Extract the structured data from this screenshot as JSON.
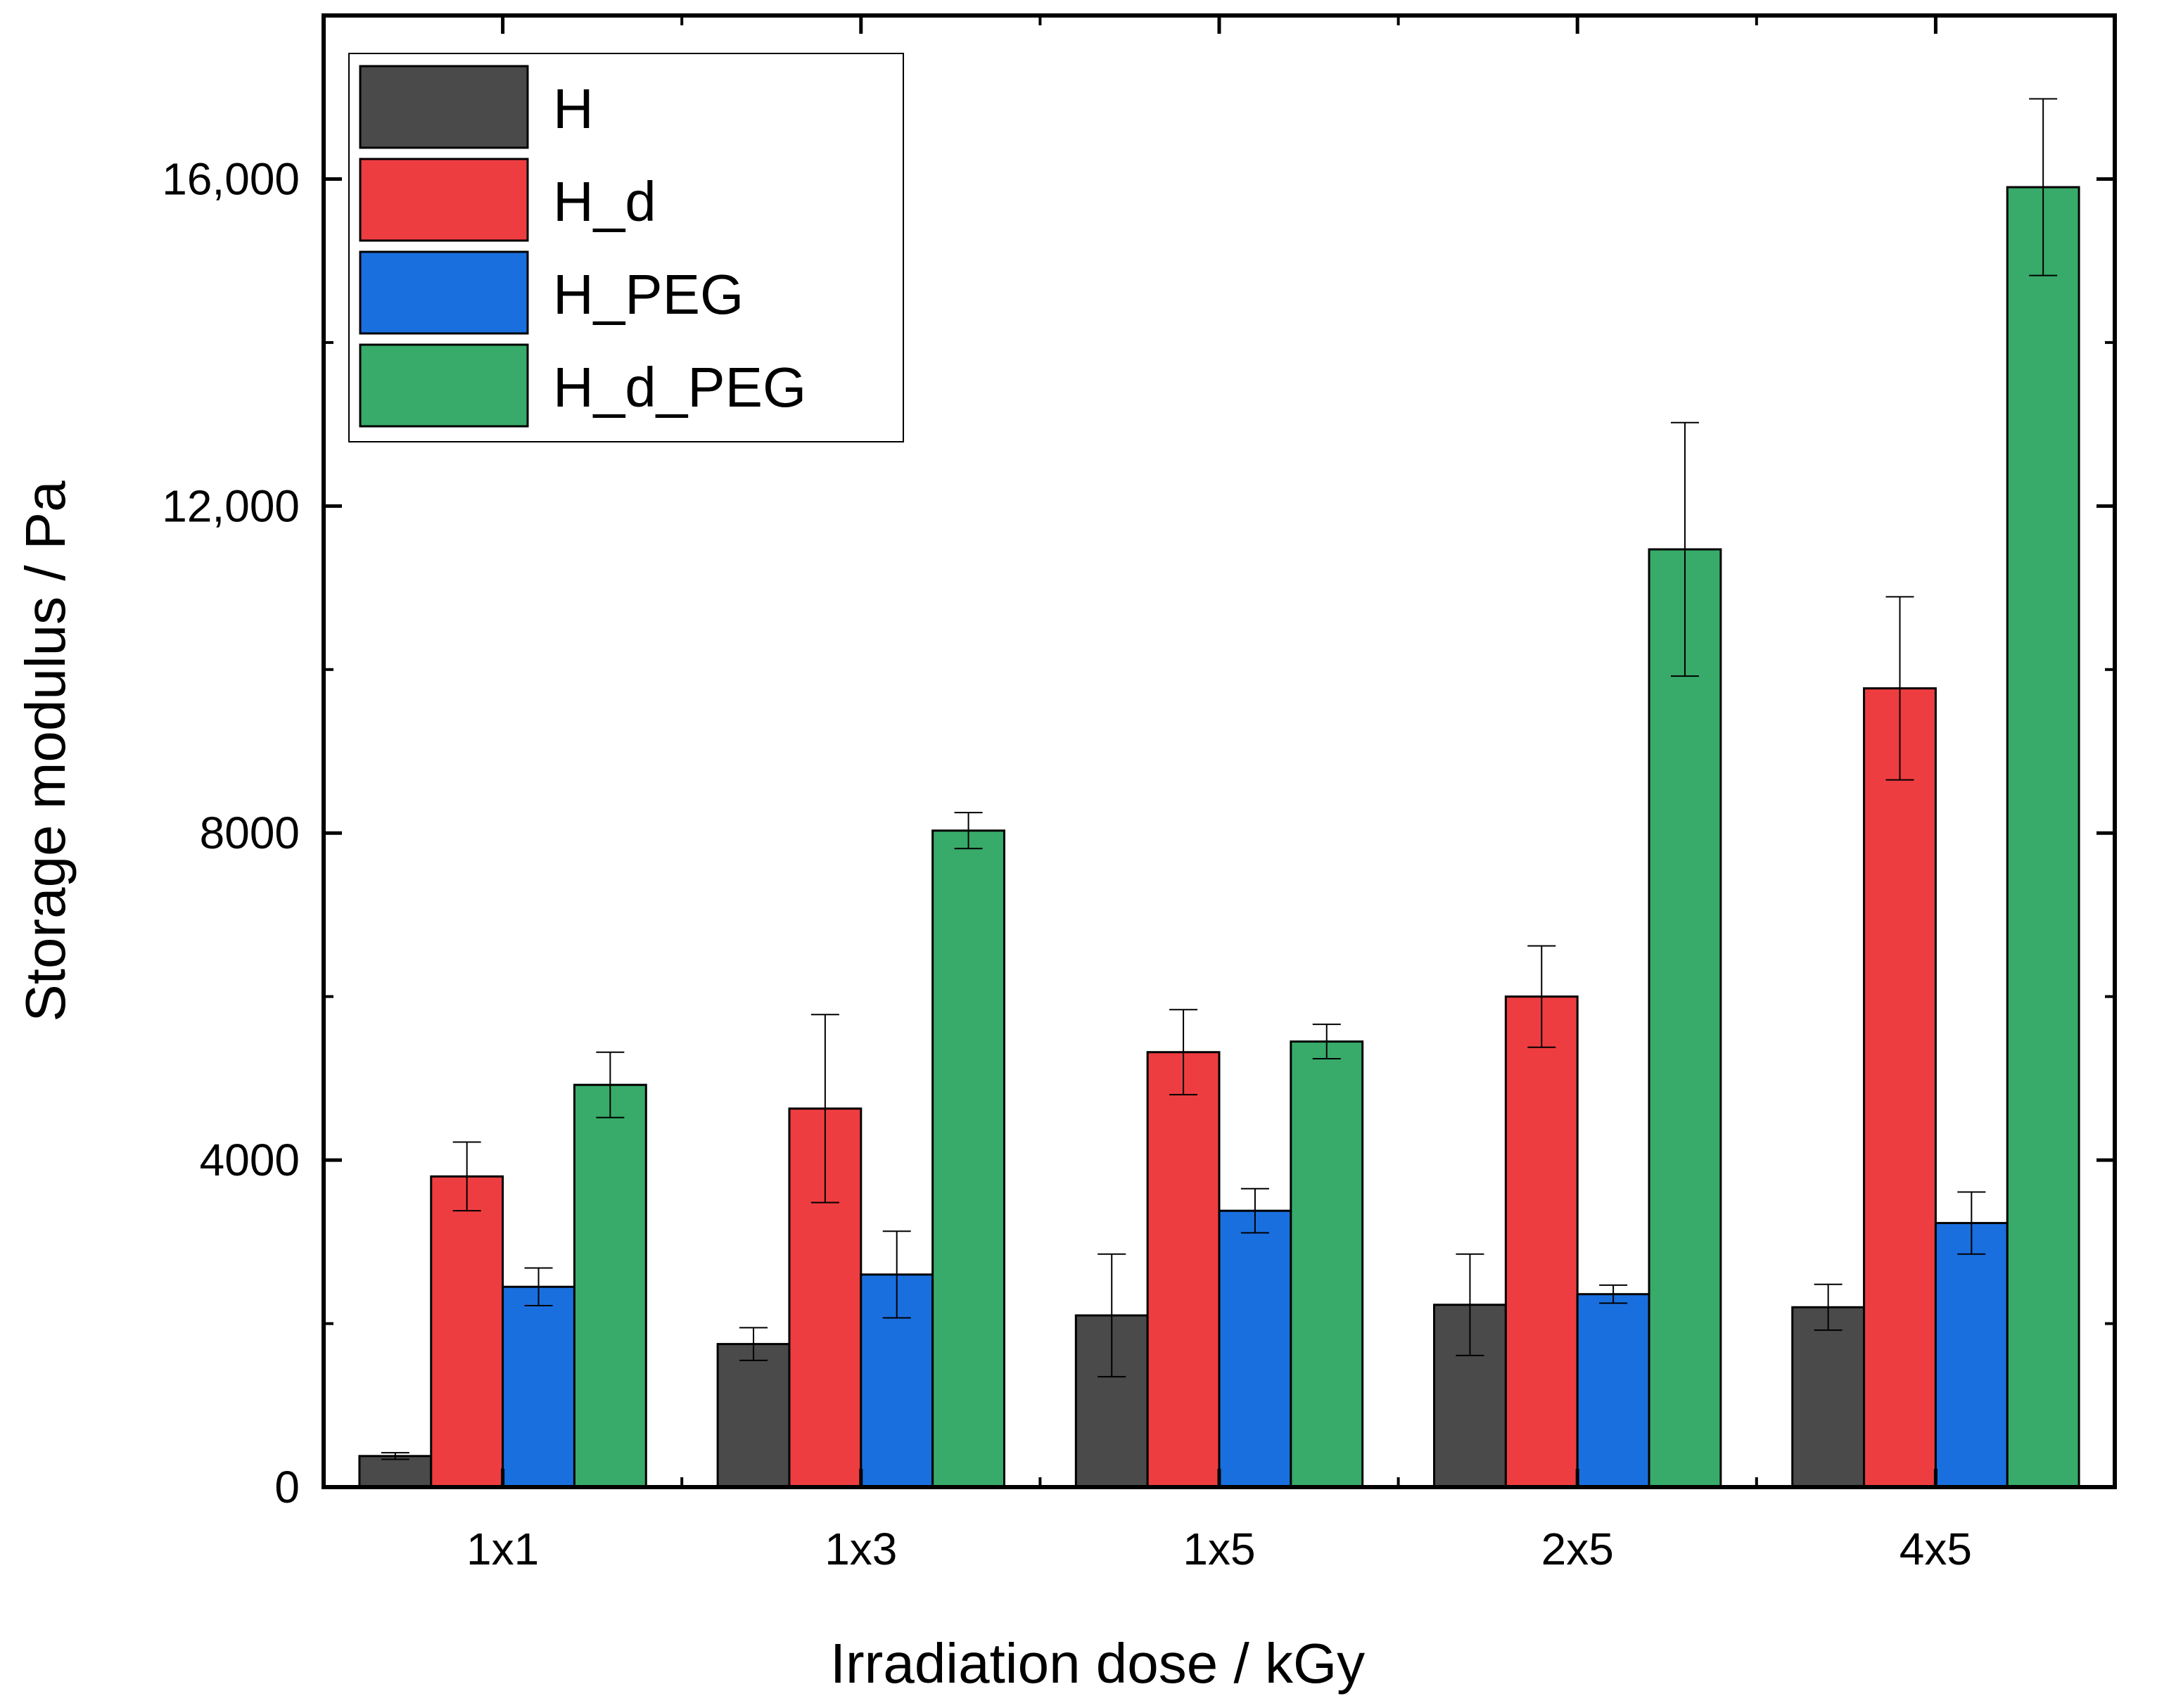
{
  "chart_data": {
    "type": "bar",
    "title": "",
    "xlabel": "Irradiation dose / kGy",
    "ylabel": "Storage modulus / Pa",
    "categories": [
      "1x1",
      "1x3",
      "1x5",
      "2x5",
      "4x5"
    ],
    "ylim": [
      0,
      18000
    ],
    "yticks": [
      0,
      4000,
      8000,
      12000,
      16000
    ],
    "ytick_labels": [
      "0",
      "4000",
      "8000",
      "12,000",
      "16,000"
    ],
    "ytick_minor": [
      2000,
      6000,
      10000,
      14000
    ],
    "legend_position": "top-left",
    "grid": false,
    "series": [
      {
        "name": "H",
        "color": "#4a4a4a",
        "values": [
          380,
          1750,
          2100,
          2230,
          2200
        ],
        "errors": [
          40,
          200,
          750,
          620,
          280
        ]
      },
      {
        "name": "H_d",
        "color": "#ee3d40",
        "values": [
          3800,
          4630,
          5320,
          6000,
          9770
        ],
        "errors": [
          420,
          1150,
          520,
          620,
          1120
        ]
      },
      {
        "name": "H_PEG",
        "color": "#1a6fdf",
        "values": [
          2450,
          2600,
          3380,
          2360,
          3230
        ],
        "errors": [
          230,
          530,
          270,
          110,
          380
        ]
      },
      {
        "name": "H_d_PEG",
        "color": "#38ab6a",
        "values": [
          4920,
          8030,
          5450,
          11470,
          15900
        ],
        "errors": [
          400,
          220,
          210,
          1550,
          1080
        ]
      }
    ]
  }
}
